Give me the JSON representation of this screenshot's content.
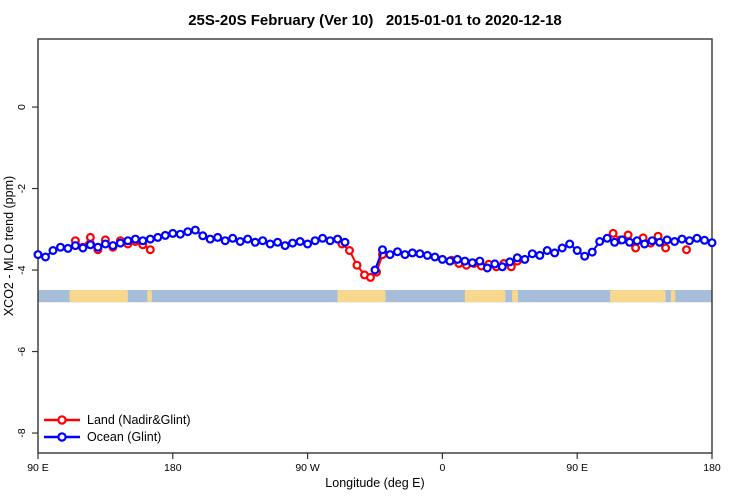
{
  "title": "25S-20S February (Ver 10)   2015-01-01 to 2020-12-18",
  "chart_data": {
    "type": "line",
    "title": "25S-20S February (Ver 10)   2015-01-01 to 2020-12-18",
    "xlabel": "Longitude (deg E)",
    "ylabel": "XCO2 - MLO trend (ppm)",
    "xlim": [
      90,
      540
    ],
    "ylim_top": 1.67,
    "ylim_bottom": -8.49,
    "grid": "off",
    "x_ticks": [
      {
        "value": 90,
        "label": "90 E"
      },
      {
        "value": 180,
        "label": "180"
      },
      {
        "value": 270,
        "label": "90 W"
      },
      {
        "value": 360,
        "label": "0"
      },
      {
        "value": 450,
        "label": "90 E"
      },
      {
        "value": 540,
        "label": "180"
      }
    ],
    "y_ticks": [
      {
        "value": 0,
        "label": "0"
      },
      {
        "value": -2,
        "label": "-2"
      },
      {
        "value": -4,
        "label": "-4"
      },
      {
        "value": -6,
        "label": "-6"
      },
      {
        "value": -8,
        "label": "-8"
      }
    ],
    "legend": {
      "position": "bottom-left",
      "entries": [
        {
          "name": "Land (Nadir&Glint)",
          "color": "#ff0000"
        },
        {
          "name": "Ocean (Glint)",
          "color": "#0000ff"
        }
      ]
    },
    "marker": {
      "shape": "open-circle",
      "radius": 3.4,
      "stroke_width": 2.2,
      "fill": "#ffffff"
    },
    "series": [
      {
        "name": "Land (Nadir&Glint)",
        "color": "#ff0000",
        "segments": [
          [
            [
              115,
              -3.28
            ],
            [
              120,
              -3.44
            ],
            [
              125,
              -3.2
            ],
            [
              130,
              -3.5
            ],
            [
              135,
              -3.26
            ],
            [
              140,
              -3.44
            ],
            [
              145,
              -3.28
            ],
            [
              150,
              -3.36
            ],
            [
              155,
              -3.3
            ],
            [
              160,
              -3.38
            ],
            [
              165,
              -3.5
            ]
          ],
          [
            [
              293,
              -3.36
            ],
            [
              298,
              -3.52
            ],
            [
              303,
              -3.88
            ],
            [
              308,
              -4.12
            ],
            [
              312,
              -4.18
            ],
            [
              316,
              -4.05
            ],
            [
              320,
              -3.62
            ]
          ],
          [
            [
              366,
              -3.76
            ],
            [
              371,
              -3.84
            ],
            [
              376,
              -3.88
            ],
            [
              381,
              -3.84
            ],
            [
              386,
              -3.9
            ],
            [
              391,
              -3.86
            ],
            [
              396,
              -3.92
            ],
            [
              401,
              -3.84
            ],
            [
              406,
              -3.92
            ],
            [
              410,
              -3.78
            ]
          ],
          [
            [
              474,
              -3.1
            ],
            [
              479,
              -3.26
            ],
            [
              484,
              -3.14
            ],
            [
              489,
              -3.46
            ],
            [
              494,
              -3.21
            ],
            [
              499,
              -3.34
            ],
            [
              504,
              -3.17
            ],
            [
              509,
              -3.46
            ]
          ],
          [
            [
              523,
              -3.5
            ]
          ]
        ]
      },
      {
        "name": "Ocean (Glint)",
        "color": "#0000ff",
        "segments": [
          [
            [
              90,
              -3.62
            ],
            [
              95,
              -3.68
            ],
            [
              100,
              -3.52
            ],
            [
              105,
              -3.44
            ],
            [
              110,
              -3.47
            ],
            [
              115,
              -3.4
            ],
            [
              120,
              -3.46
            ],
            [
              125,
              -3.38
            ],
            [
              130,
              -3.44
            ],
            [
              135,
              -3.36
            ],
            [
              140,
              -3.4
            ],
            [
              145,
              -3.34
            ],
            [
              150,
              -3.28
            ],
            [
              155,
              -3.24
            ],
            [
              160,
              -3.28
            ],
            [
              165,
              -3.24
            ],
            [
              170,
              -3.2
            ],
            [
              175,
              -3.15
            ],
            [
              180,
              -3.1
            ],
            [
              185,
              -3.12
            ],
            [
              190,
              -3.06
            ],
            [
              195,
              -3.02
            ],
            [
              200,
              -3.16
            ],
            [
              205,
              -3.24
            ],
            [
              210,
              -3.2
            ],
            [
              215,
              -3.28
            ],
            [
              220,
              -3.22
            ],
            [
              225,
              -3.3
            ],
            [
              230,
              -3.24
            ],
            [
              235,
              -3.32
            ],
            [
              240,
              -3.28
            ],
            [
              245,
              -3.36
            ],
            [
              250,
              -3.32
            ],
            [
              255,
              -3.4
            ],
            [
              260,
              -3.34
            ],
            [
              265,
              -3.3
            ],
            [
              270,
              -3.36
            ],
            [
              275,
              -3.28
            ],
            [
              280,
              -3.22
            ],
            [
              285,
              -3.28
            ],
            [
              290,
              -3.24
            ],
            [
              295,
              -3.32
            ]
          ],
          [
            [
              315,
              -4.0
            ],
            [
              320,
              -3.5
            ],
            [
              325,
              -3.62
            ],
            [
              330,
              -3.55
            ],
            [
              335,
              -3.62
            ],
            [
              340,
              -3.58
            ],
            [
              345,
              -3.6
            ],
            [
              350,
              -3.64
            ],
            [
              355,
              -3.68
            ],
            [
              360,
              -3.74
            ],
            [
              365,
              -3.78
            ],
            [
              370,
              -3.74
            ],
            [
              375,
              -3.78
            ],
            [
              380,
              -3.82
            ],
            [
              385,
              -3.78
            ],
            [
              390,
              -3.95
            ],
            [
              395,
              -3.85
            ],
            [
              400,
              -3.92
            ],
            [
              405,
              -3.8
            ],
            [
              410,
              -3.7
            ],
            [
              415,
              -3.74
            ],
            [
              420,
              -3.6
            ],
            [
              425,
              -3.64
            ],
            [
              430,
              -3.52
            ],
            [
              435,
              -3.58
            ],
            [
              440,
              -3.46
            ],
            [
              445,
              -3.36
            ],
            [
              450,
              -3.52
            ],
            [
              455,
              -3.66
            ],
            [
              460,
              -3.56
            ],
            [
              465,
              -3.3
            ],
            [
              470,
              -3.22
            ],
            [
              475,
              -3.32
            ],
            [
              480,
              -3.26
            ],
            [
              485,
              -3.32
            ],
            [
              490,
              -3.28
            ],
            [
              495,
              -3.36
            ],
            [
              500,
              -3.28
            ],
            [
              505,
              -3.32
            ],
            [
              510,
              -3.26
            ],
            [
              515,
              -3.3
            ],
            [
              520,
              -3.24
            ],
            [
              525,
              -3.28
            ],
            [
              530,
              -3.22
            ],
            [
              535,
              -3.27
            ],
            [
              540,
              -3.33
            ]
          ]
        ]
      }
    ],
    "map_band": {
      "description": "land/ocean strip along latitude band",
      "y_top": -4.49,
      "y_bottom": -4.79,
      "ocean_color": "#a7bedb",
      "land_color": "#f8d88f",
      "ocean_range": [
        90,
        540
      ],
      "land_segments": [
        [
          111,
          150
        ],
        [
          163,
          166
        ],
        [
          290,
          322
        ],
        [
          375,
          402
        ],
        [
          406.5,
          410.5
        ],
        [
          472,
          509
        ],
        [
          512.5,
          515.5
        ]
      ]
    }
  }
}
